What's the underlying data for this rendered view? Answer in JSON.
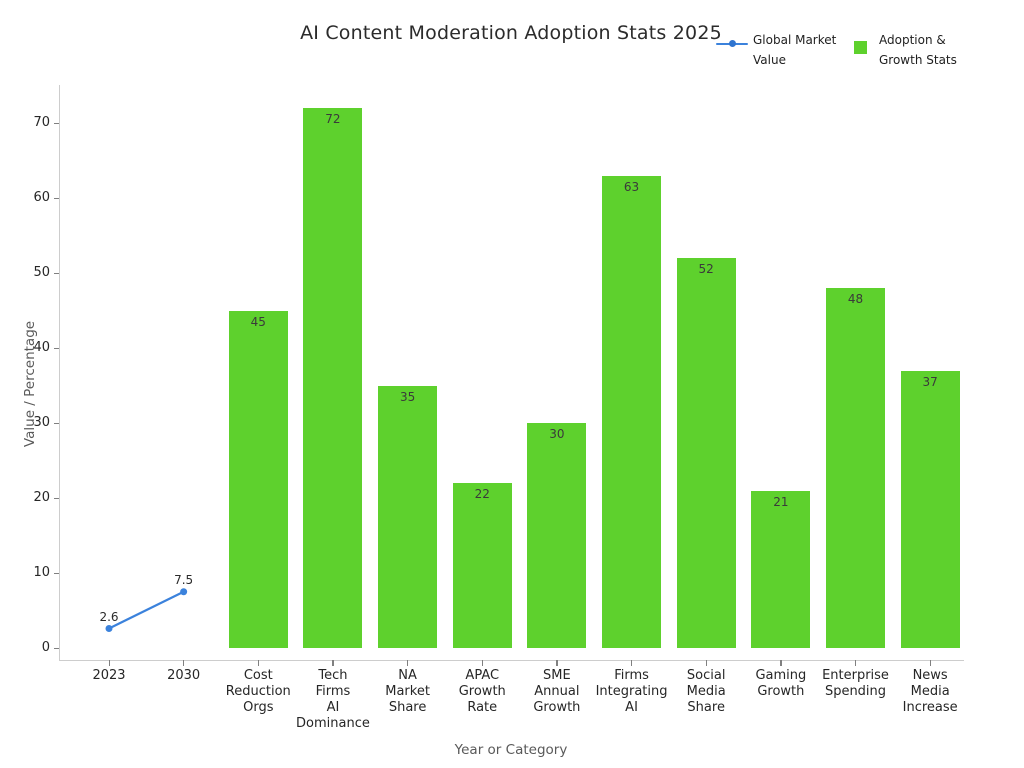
{
  "chart_data": {
    "type": "bar",
    "title": "AI Content Moderation Adoption Stats 2025",
    "xlabel": "Year or Category",
    "ylabel": "Value / Percentage",
    "ylim": [
      -1.7,
      75.3
    ],
    "yticks": [
      0,
      10,
      20,
      30,
      40,
      50,
      60,
      70
    ],
    "grid": false,
    "legend_position": "top-right, outside plot, beside title",
    "categories": [
      "2023",
      "2030",
      "Cost Reduction Orgs",
      "Tech Firms AI Dominance",
      "NA Market Share",
      "APAC Growth Rate",
      "SME Annual Growth",
      "Firms Integrating AI",
      "Social Media Share",
      "Gaming Growth",
      "Enterprise Spending",
      "News Media Increase"
    ],
    "series": [
      {
        "name": "Global Market Value",
        "type": "line",
        "color": "#3b82dc",
        "x": [
          "2023",
          "2030"
        ],
        "values": [
          2.6,
          7.5
        ],
        "point_labels": [
          "2.6",
          "7.5"
        ]
      },
      {
        "name": "Adoption & Growth Stats",
        "type": "bar",
        "color": "#5ed12d",
        "x": [
          "Cost Reduction Orgs",
          "Tech Firms AI Dominance",
          "NA Market Share",
          "APAC Growth Rate",
          "SME Annual Growth",
          "Firms Integrating AI",
          "Social Media Share",
          "Gaming Growth",
          "Enterprise Spending",
          "News Media Increase"
        ],
        "values": [
          45,
          72,
          35,
          22,
          30,
          63,
          52,
          21,
          48,
          37
        ],
        "bar_labels": [
          "45",
          "72",
          "35",
          "22",
          "30",
          "63",
          "52",
          "21",
          "48",
          "37"
        ]
      }
    ]
  },
  "colors": {
    "line_series": "#3b82dc",
    "bar_series": "#5ed12d",
    "spine": "#cdcdcd",
    "tick_text": "#262626",
    "axis_title_text": "#595959",
    "title_text": "#2b2b2b",
    "background": "#ffffff"
  }
}
